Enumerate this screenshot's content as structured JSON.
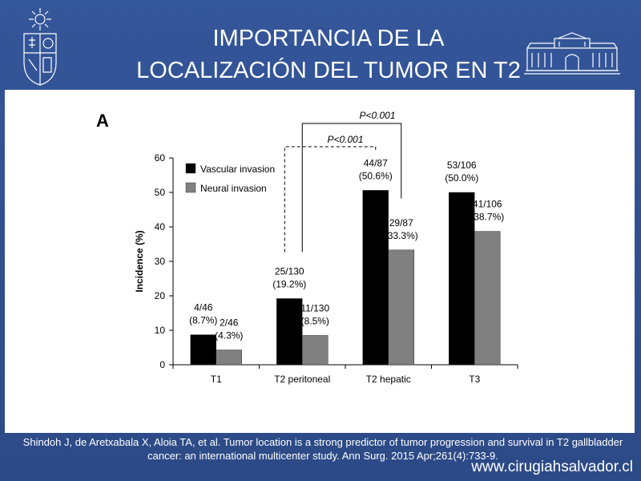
{
  "slide": {
    "title_line1": "IMPORTANCIA DE LA",
    "title_line2": "LOCALIZACIÓN DEL TUMOR EN T2",
    "citation": "Shindoh J, de Aretxabala X, Aloia TA, et al. Tumor location is a strong predictor of tumor progression and survival in T2 gallbladder cancer: an international multicenter study. Ann Surg. 2015 Apr;261(4):733-9.",
    "website": "www.cirugiahsalvador.cl",
    "panel_label": "A"
  },
  "colors": {
    "background": "#2f4f8c",
    "vascular": "#000000",
    "neural": "#808080"
  },
  "chart_data": {
    "type": "bar",
    "categories": [
      "T1",
      "T2 peritoneal",
      "T2 hepatic",
      "T3"
    ],
    "series": [
      {
        "name": "Vascular invasion",
        "values": [
          8.7,
          19.2,
          50.6,
          50.0
        ],
        "labels": [
          "4/46\n(8.7%)",
          "25/130\n(19.2%)",
          "44/87\n(50.6%)",
          "53/106\n(50.0%)"
        ]
      },
      {
        "name": "Neural invasion",
        "values": [
          4.3,
          8.5,
          33.3,
          38.7
        ],
        "labels": [
          "2/46\n(4.3%)",
          "11/130\n(8.5%)",
          "29/87\n(33.3%)",
          "41/106\n(38.7%)"
        ]
      }
    ],
    "ylabel": "Incidence (%)",
    "ylim": [
      0,
      60
    ],
    "yticks": [
      0,
      10,
      20,
      30,
      40,
      50,
      60
    ],
    "legend_position": "top-left",
    "annotations": [
      {
        "text": "P<0.001",
        "between": [
          "T2 peritoneal",
          "T2 hepatic"
        ],
        "series": "Vascular invasion",
        "style": "dashed"
      },
      {
        "text": "P<0.001",
        "between": [
          "T2 peritoneal",
          "T2 hepatic"
        ],
        "series": "Neural invasion",
        "style": "solid"
      }
    ]
  }
}
